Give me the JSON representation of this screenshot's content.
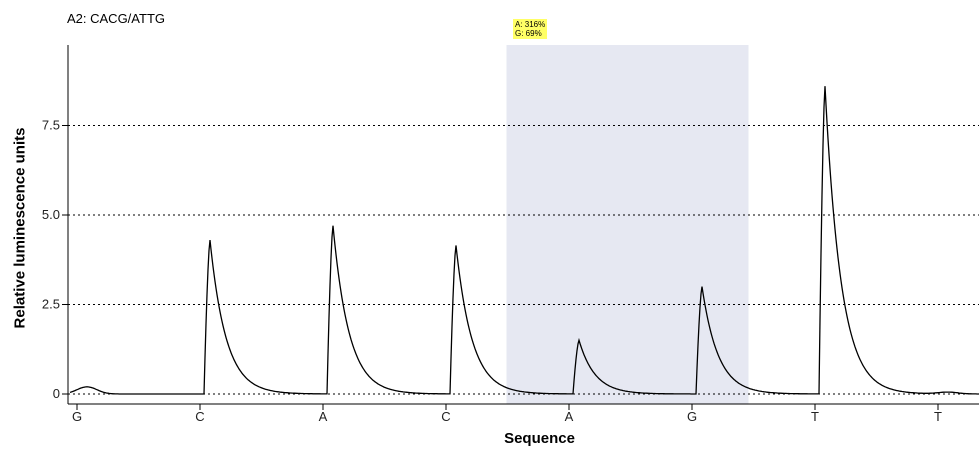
{
  "chart_data": {
    "type": "line",
    "title": "A2: CACG/ATTG",
    "xlabel": "Sequence",
    "ylabel": "Relative luminescence units",
    "categories": [
      "G",
      "C",
      "A",
      "C",
      "A",
      "G",
      "T",
      "T"
    ],
    "ylim": [
      -0.3,
      9.8
    ],
    "yticks": [
      0,
      2.5,
      5.0,
      7.5
    ],
    "ytick_labels": [
      "0",
      "2.5",
      "5.0",
      "7.5"
    ],
    "grid": "dotted horizontal at y ticks",
    "peaks": [
      {
        "category": "G",
        "position": 1,
        "height": 0.2
      },
      {
        "category": "C",
        "position": 2,
        "height": 4.3
      },
      {
        "category": "A",
        "position": 3,
        "height": 4.7
      },
      {
        "category": "C",
        "position": 4,
        "height": 4.15
      },
      {
        "category": "A",
        "position": 5,
        "height": 1.5
      },
      {
        "category": "G",
        "position": 6,
        "height": 3.0
      },
      {
        "category": "T",
        "position": 7,
        "height": 8.6
      },
      {
        "category": "T",
        "position": 8,
        "height": 0.05
      }
    ],
    "highlight": {
      "from": 5,
      "to": 6,
      "color": "#e6e8f2"
    },
    "annotation": {
      "lines": [
        "A: 316%",
        "G: 69%"
      ],
      "color": "#ffff66"
    },
    "line_color": "#000000"
  }
}
